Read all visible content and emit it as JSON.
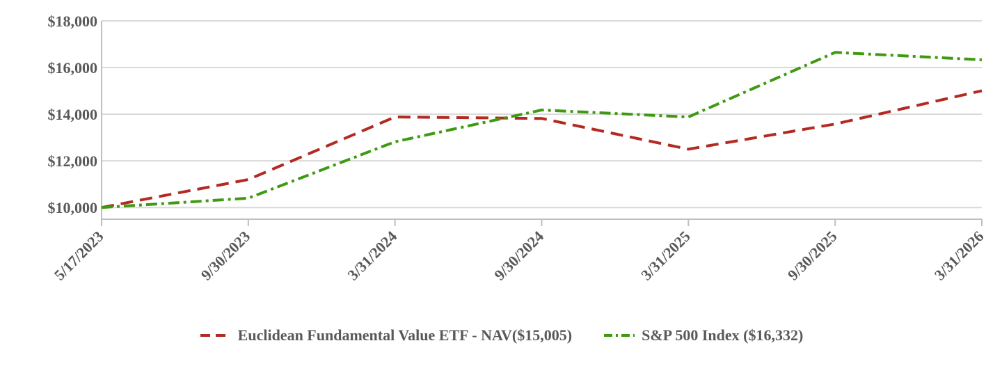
{
  "chart_data": {
    "type": "line",
    "title": "",
    "xlabel": "",
    "ylabel": "",
    "categories": [
      "5/17/2023",
      "9/30/2023",
      "3/31/2024",
      "9/30/2024",
      "3/31/2025",
      "9/30/2025",
      "3/31/2026"
    ],
    "y_ticks": [
      "$10,000",
      "$12,000",
      "$14,000",
      "$16,000",
      "$18,000"
    ],
    "ylim": [
      9500,
      18000
    ],
    "grid": true,
    "legend_position": "bottom",
    "series": [
      {
        "name": "Euclidean Fundamental Value ETF - NAV($15,005)",
        "color": "#b22a22",
        "dash": "dashed",
        "values": [
          10000,
          11200,
          13880,
          13820,
          12500,
          13580,
          15005
        ]
      },
      {
        "name": "S&P 500 Index ($16,332)",
        "color": "#3f9a12",
        "dash": "dash-dot",
        "values": [
          10000,
          10400,
          12820,
          14180,
          13880,
          16650,
          16332
        ]
      }
    ]
  }
}
